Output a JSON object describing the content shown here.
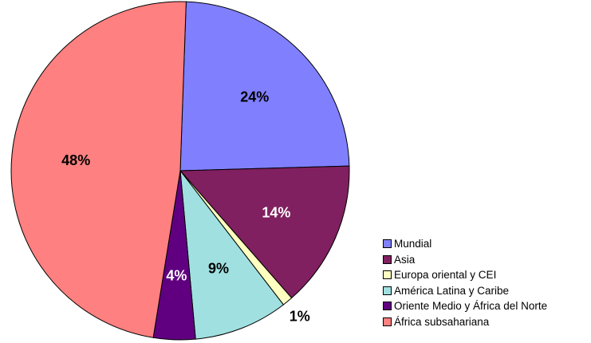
{
  "chart_data": {
    "type": "pie",
    "title": "",
    "slices": [
      {
        "name": "Mundial",
        "value": 24,
        "label": "24%",
        "color": "#8080FF",
        "label_color": "#000000"
      },
      {
        "name": "Asia",
        "value": 14,
        "label": "14%",
        "color": "#802060",
        "label_color": "#FFFFFF"
      },
      {
        "name": "Europa oriental y CEI",
        "value": 1,
        "label": "1%",
        "color": "#FFFFC0",
        "label_color": "#000000"
      },
      {
        "name": "América Latina y Caribe",
        "value": 9,
        "label": "9%",
        "color": "#A0E0E0",
        "label_color": "#000000"
      },
      {
        "name": "Oriente Medio y África del Norte",
        "value": 4,
        "label": "4%",
        "color": "#600080",
        "label_color": "#FFFFFF"
      },
      {
        "name": "África subsahariana",
        "value": 48,
        "label": "48%",
        "color": "#FF8080",
        "label_color": "#000000"
      }
    ],
    "legend_position": "bottom-right"
  }
}
